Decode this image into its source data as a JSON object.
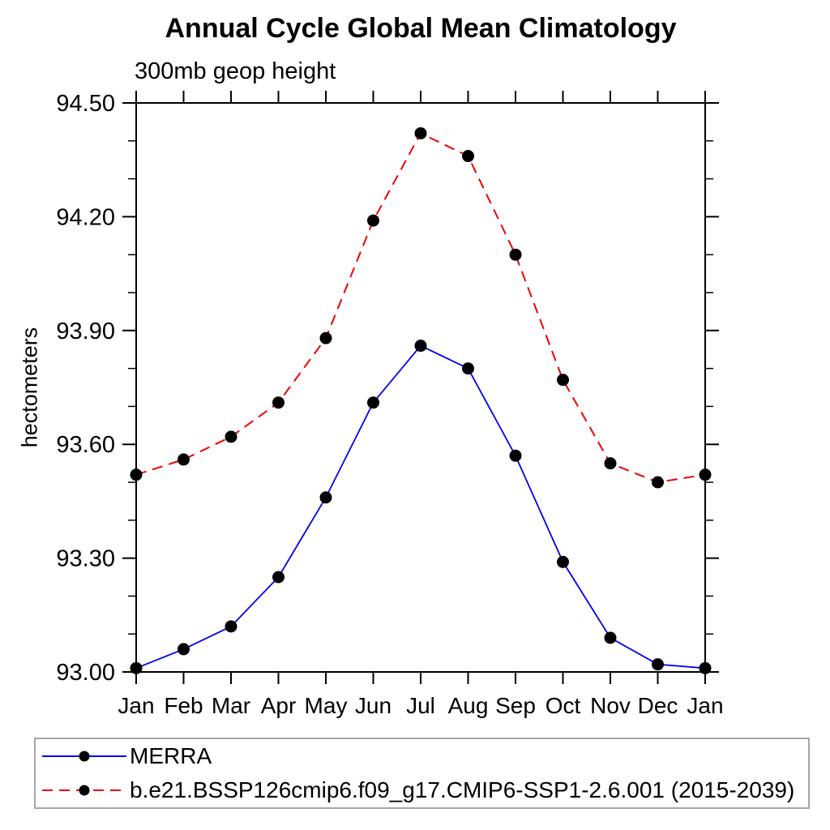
{
  "chart_data": {
    "type": "line",
    "title": "Annual Cycle Global Mean Climatology",
    "subtitle": "300mb geop height",
    "ylabel": "hectometers",
    "x_tick_labels": [
      "Jan",
      "Feb",
      "Mar",
      "Apr",
      "May",
      "Jun",
      "Jul",
      "Aug",
      "Sep",
      "Oct",
      "Nov",
      "Dec",
      "Jan"
    ],
    "ylim": [
      93.0,
      94.5
    ],
    "y_major_tick_step": 0.3,
    "y_minor_tick_step": 0.1,
    "y_major_tick_labels": [
      "93.00",
      "93.30",
      "93.60",
      "93.90",
      "94.20",
      "94.50"
    ],
    "grid": false,
    "legend_position": "bottom-left-box",
    "axis_color": "#000000",
    "marker_color": "#000000",
    "legend_border_color": "#a6a6a6",
    "series": [
      {
        "name": "MERRA",
        "color": "#0000ee",
        "line_style": "solid",
        "marker": "filled-circle",
        "values": [
          93.01,
          93.06,
          93.12,
          93.25,
          93.46,
          93.71,
          93.86,
          93.8,
          93.57,
          93.29,
          93.09,
          93.02,
          93.01
        ]
      },
      {
        "name": "b.e21.BSSP126cmip6.f09_g17.CMIP6-SSP1-2.6.001 (2015-2039)",
        "color": "#ee0000",
        "line_style": "dashed",
        "marker": "filled-circle",
        "values": [
          93.52,
          93.56,
          93.62,
          93.71,
          93.88,
          94.19,
          94.42,
          94.36,
          94.1,
          93.77,
          93.55,
          93.5,
          93.52
        ]
      }
    ]
  }
}
